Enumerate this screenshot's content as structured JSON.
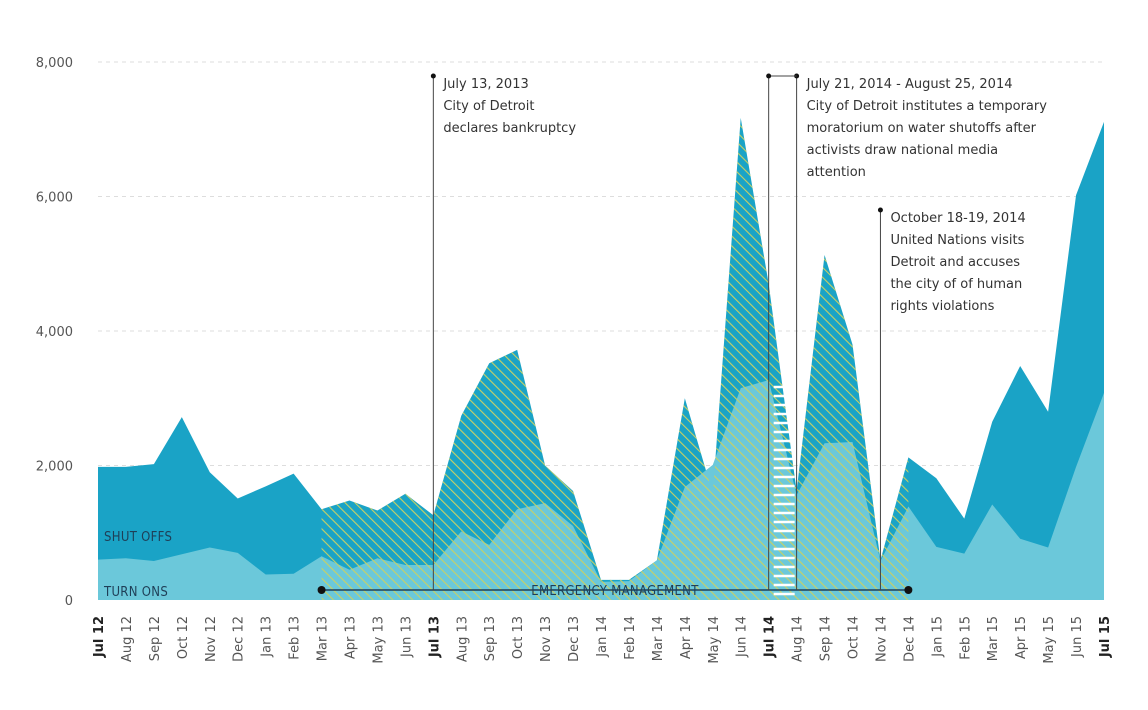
{
  "chart_data": {
    "type": "area",
    "x": [
      "Jul 12",
      "Aug 12",
      "Sep 12",
      "Oct 12",
      "Nov 12",
      "Dec 12",
      "Jan 13",
      "Feb 13",
      "Mar 13",
      "Apr 13",
      "May 13",
      "Jun 13",
      "Jul 13",
      "Aug 13",
      "Sep 13",
      "Oct 13",
      "Nov 13",
      "Dec 13",
      "Jan 14",
      "Feb 14",
      "Mar 14",
      "Apr 14",
      "May 14",
      "Jun 14",
      "Jul 14",
      "Aug 14",
      "Sep 14",
      "Oct 14",
      "Nov 14",
      "Dec 14",
      "Jan 15",
      "Feb 15",
      "Mar 15",
      "Apr 15",
      "May 15",
      "Jun 15",
      "Jul 15"
    ],
    "bold_ticks": [
      "Jul 12",
      "Jul 13",
      "Jul 14",
      "Jul 15"
    ],
    "series": [
      {
        "name": "SHUT OFFS",
        "values": [
          1980,
          1980,
          2020,
          2720,
          1900,
          1510,
          1690,
          1880,
          1350,
          1480,
          1330,
          1580,
          1260,
          2740,
          3520,
          3720,
          2000,
          1620,
          300,
          300,
          590,
          3000,
          1580,
          7170,
          4700,
          1620,
          5130,
          3800,
          590,
          2120,
          1810,
          1210,
          2650,
          3480,
          2800,
          6020,
          7110
        ]
      },
      {
        "name": "TURN ONS",
        "values": [
          600,
          620,
          580,
          680,
          780,
          700,
          380,
          390,
          650,
          450,
          620,
          520,
          520,
          1020,
          820,
          1350,
          1440,
          1100,
          270,
          280,
          590,
          1680,
          2010,
          3150,
          3270,
          1560,
          2330,
          2350,
          580,
          1390,
          790,
          690,
          1420,
          910,
          780,
          1980,
          3080
        ]
      }
    ],
    "yticks": [
      0,
      2000,
      4000,
      6000,
      8000
    ],
    "ytick_labels": [
      "0",
      "2,000",
      "4,000",
      "6,000",
      "8,000"
    ],
    "ylim": [
      0,
      8000
    ],
    "legend": "area labels at bottom-left",
    "colors": {
      "shut_offs": "#1aa3c6",
      "turn_ons": "#6bc8da",
      "hatch_line": "#c9d063",
      "grid": "#dddddd"
    },
    "emergency_label": "EMERGENCY MANAGEMENT",
    "emergency_range": [
      "Mar 13",
      "Dec 14"
    ],
    "moratorium_range": [
      "Jul 14",
      "Aug 14"
    ],
    "annotations": [
      {
        "x": "Jul 13",
        "lines": [
          "July 13, 2013",
          "City of Detroit",
          "declares bankruptcy"
        ]
      },
      {
        "x": "Aug 14",
        "lines": [
          "July 21, 2014 - August 25, 2014",
          "City of Detroit institutes a temporary",
          "moratorium on water shutoffs after",
          "activists draw national media",
          "attention"
        ]
      },
      {
        "x": "Nov 14",
        "lines": [
          "October 18-19, 2014",
          "United Nations visits",
          "Detroit and accuses",
          "the city of of human",
          "rights violations"
        ]
      }
    ]
  }
}
